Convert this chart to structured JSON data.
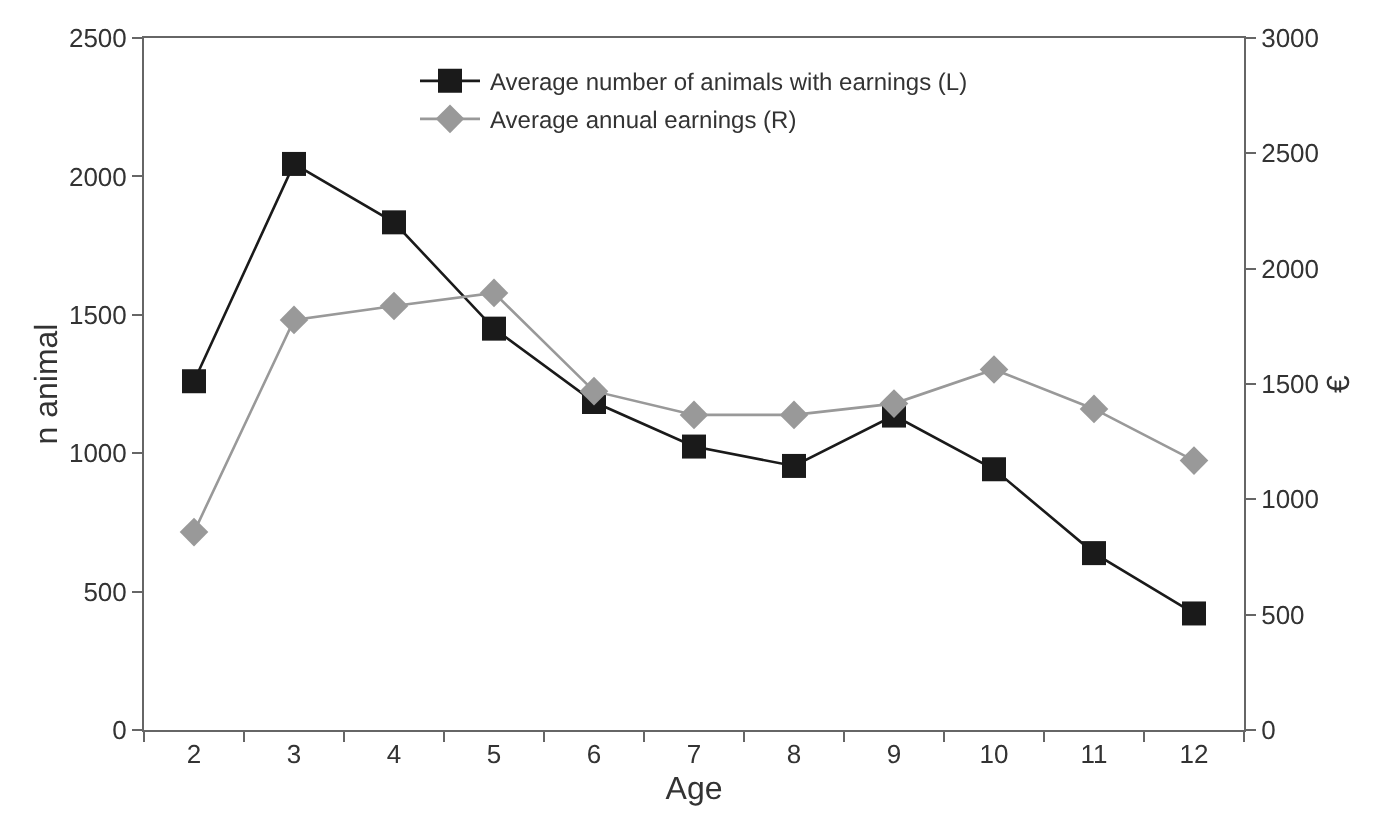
{
  "chart_data": {
    "type": "line",
    "xlabel": "Age",
    "ylabel": "n animal",
    "y2label": "€",
    "x": [
      2,
      3,
      4,
      5,
      6,
      7,
      8,
      9,
      10,
      11,
      12
    ],
    "series": [
      {
        "name": "Average number of animals with earnings (L)",
        "color": "#1a1a1a",
        "marker": "square",
        "values": [
          1260,
          2045,
          1834,
          1450,
          1185,
          1024,
          954,
          1136,
          942,
          639,
          421
        ]
      },
      {
        "name": "Average annual earnings (R)",
        "color": "#999999",
        "marker": "diamond",
        "axis": "y2",
        "values": [
          858,
          1778,
          1838,
          1895,
          1469,
          1366,
          1366,
          1415,
          1563,
          1392,
          1168
        ]
      }
    ],
    "xlim": [
      1.5,
      12.5
    ],
    "xticks": [
      2,
      3,
      4,
      5,
      6,
      7,
      8,
      9,
      10,
      11,
      12
    ],
    "ylim": [
      0,
      2500
    ],
    "yticks": [
      0,
      500,
      1000,
      1500,
      2000,
      2500
    ],
    "y2lim": [
      0,
      3000
    ],
    "y2ticks": [
      0,
      500,
      1000,
      1500,
      2000,
      2500,
      3000
    ],
    "grid": false,
    "legend": "top",
    "line_style": "solid"
  }
}
